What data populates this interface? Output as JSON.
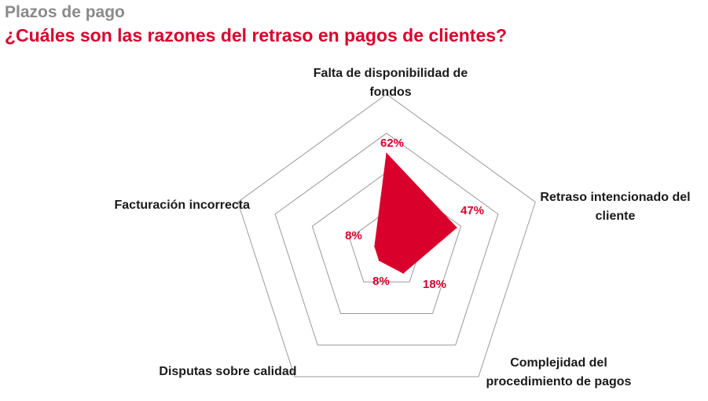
{
  "header": {
    "section": "Plazos de pago",
    "title": "¿Cuáles son las razones del retraso en pagos de clientes?"
  },
  "colors": {
    "accent": "#d9002c",
    "grid": "#9a9a9a",
    "section_title": "#8a8a8a",
    "label_text": "#1a1a1a"
  },
  "chart_data": {
    "type": "radar",
    "title": "¿Cuáles son las razones del retraso en pagos de clientes?",
    "subtitle": "Plazos de pago",
    "unit": "%",
    "rlim": [
      0,
      100
    ],
    "grid": true,
    "grid_levels": 4,
    "categories": [
      [
        "Falta de disponibilidad de",
        "fondos"
      ],
      [
        "Retraso intencionado del",
        "cliente"
      ],
      [
        "Complejidad del",
        "procedimiento de pagos"
      ],
      [
        "Disputas sobre calidad"
      ],
      [
        "Facturación incorrecta"
      ]
    ],
    "values": [
      62,
      47,
      18,
      8,
      8
    ],
    "value_labels": [
      "62%",
      "47%",
      "18%",
      "8%",
      "8%"
    ]
  }
}
